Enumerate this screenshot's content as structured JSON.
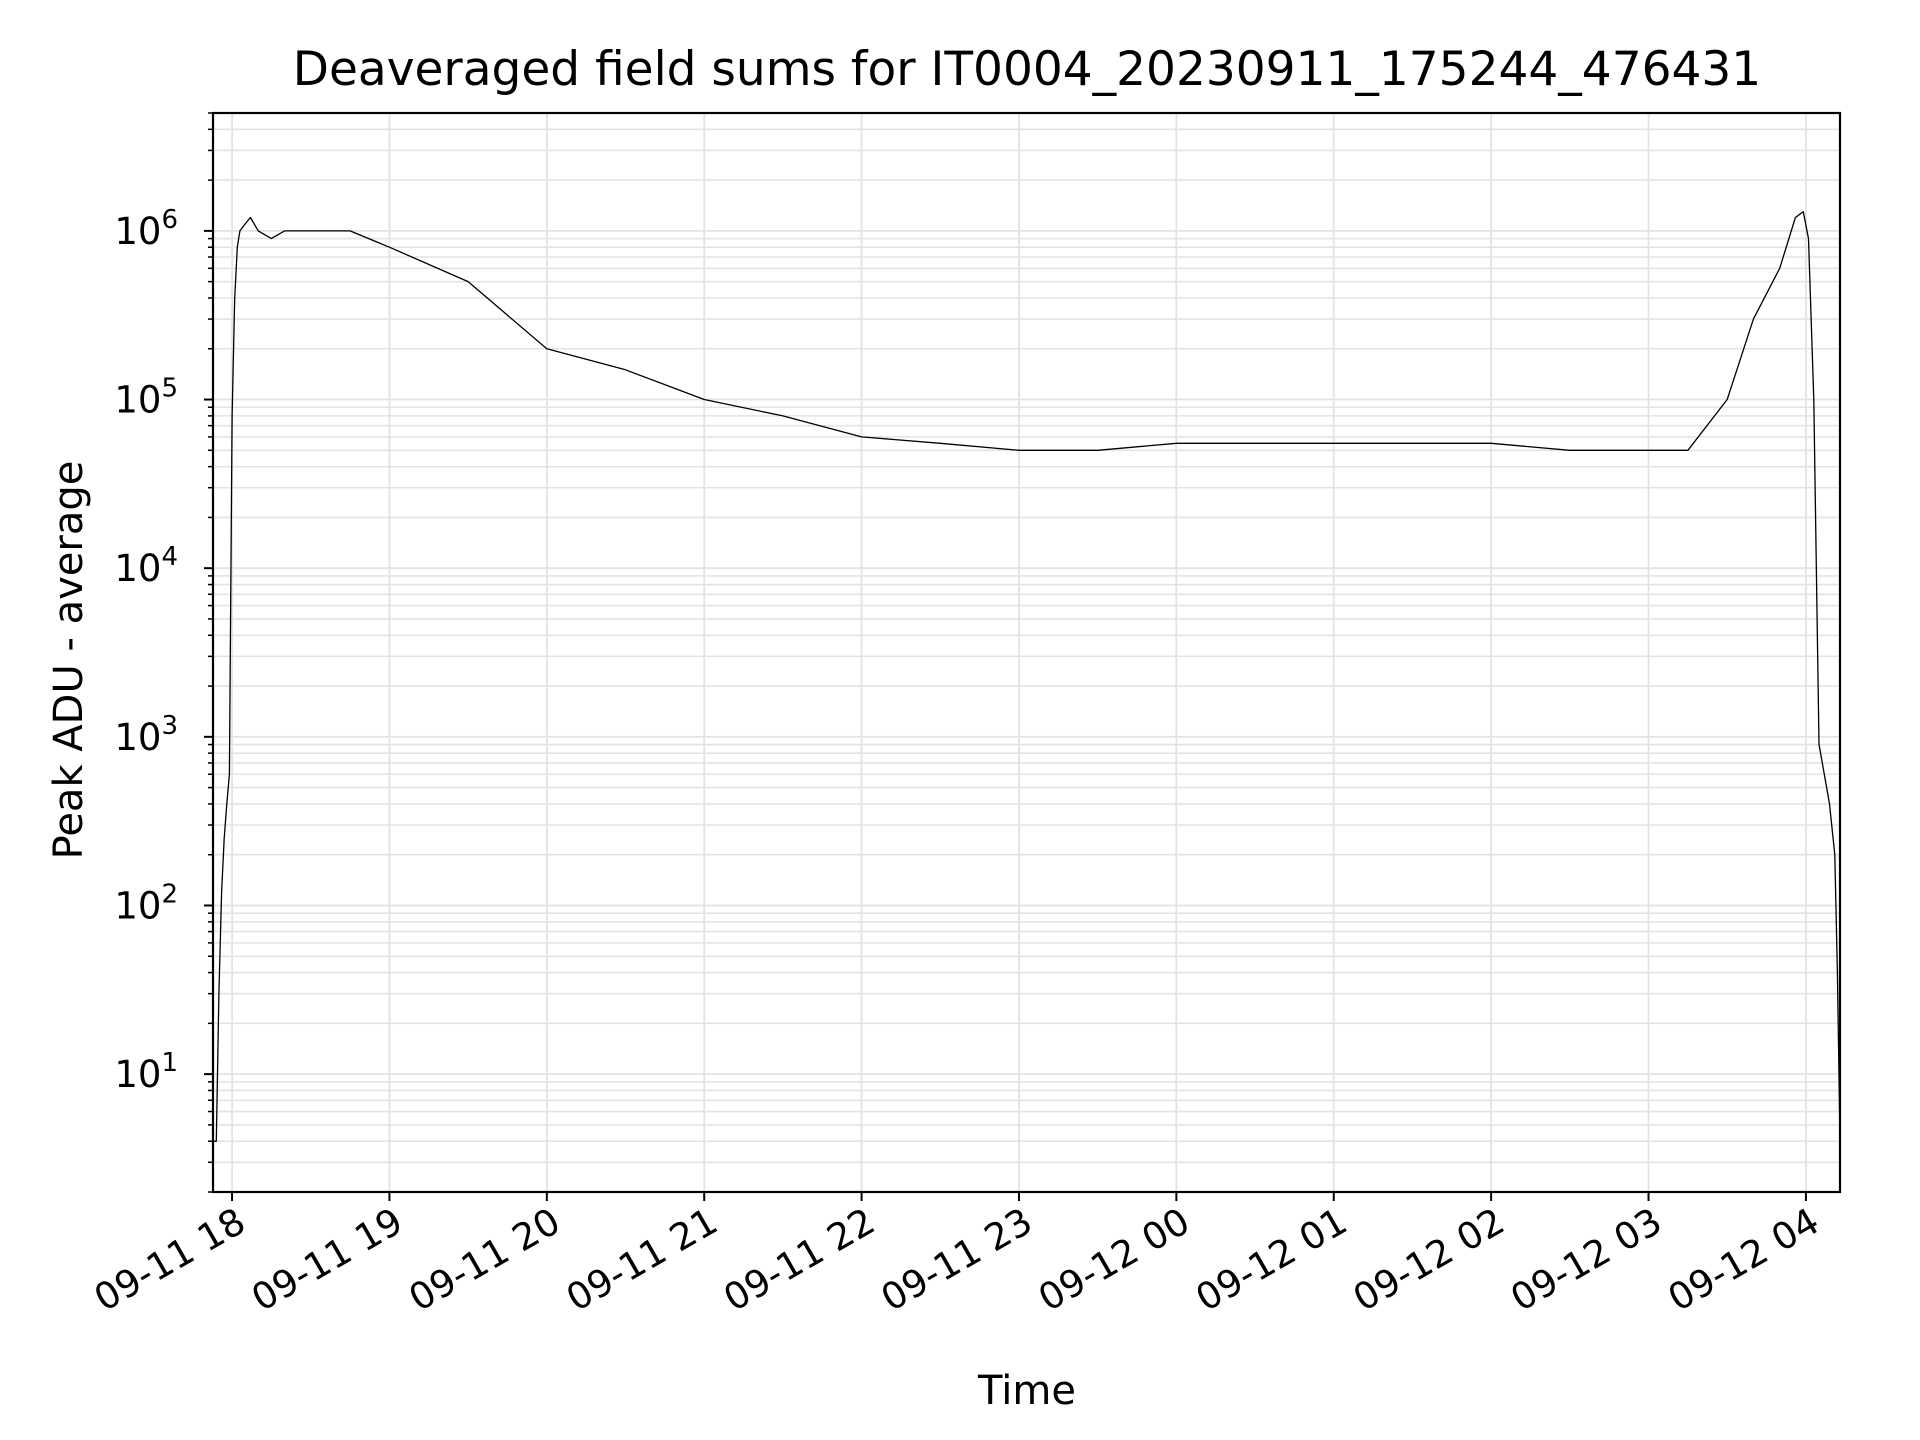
{
  "chart_data": {
    "type": "line",
    "title": "Deaveraged field sums for IT0004_20230911_175244_476431",
    "xlabel": "Time",
    "ylabel": "Peak ADU - average",
    "xscale": "time",
    "yscale": "log",
    "xlim": [
      "2023-09-11 17:52:44",
      "2023-09-12 04:13:00"
    ],
    "ylim": [
      2,
      5000000
    ],
    "grid": true,
    "legend": "none",
    "line_color": "#000000",
    "grid_color": "#e3e3e3",
    "x_ticks": [
      {
        "t": "2023-09-11 18:00",
        "label": "09-11 18"
      },
      {
        "t": "2023-09-11 19:00",
        "label": "09-11 19"
      },
      {
        "t": "2023-09-11 20:00",
        "label": "09-11 20"
      },
      {
        "t": "2023-09-11 21:00",
        "label": "09-11 21"
      },
      {
        "t": "2023-09-11 22:00",
        "label": "09-11 22"
      },
      {
        "t": "2023-09-11 23:00",
        "label": "09-11 23"
      },
      {
        "t": "2023-09-12 00:00",
        "label": "09-12 00"
      },
      {
        "t": "2023-09-12 01:00",
        "label": "09-12 01"
      },
      {
        "t": "2023-09-12 02:00",
        "label": "09-12 02"
      },
      {
        "t": "2023-09-12 03:00",
        "label": "09-12 03"
      },
      {
        "t": "2023-09-12 04:00",
        "label": "09-12 04"
      }
    ],
    "y_ticks": [
      {
        "value": 10,
        "base": "10",
        "exp": "1"
      },
      {
        "value": 100,
        "base": "10",
        "exp": "2"
      },
      {
        "value": 1000,
        "base": "10",
        "exp": "3"
      },
      {
        "value": 10000,
        "base": "10",
        "exp": "4"
      },
      {
        "value": 100000,
        "base": "10",
        "exp": "5"
      },
      {
        "value": 1000000,
        "base": "10",
        "exp": "6"
      }
    ],
    "series": [
      {
        "x": [
          "2023-09-11 17:52:44",
          "2023-09-11 17:54:00",
          "2023-09-11 17:55:00",
          "2023-09-11 17:56:00",
          "2023-09-11 17:57:00",
          "2023-09-11 17:58:00",
          "2023-09-11 17:59:00",
          "2023-09-11 18:00:00",
          "2023-09-11 18:01:00",
          "2023-09-11 18:02:00",
          "2023-09-11 18:03:00",
          "2023-09-11 18:05:00",
          "2023-09-11 18:07:00",
          "2023-09-11 18:10:00",
          "2023-09-11 18:15:00",
          "2023-09-11 18:20:00",
          "2023-09-11 18:30:00",
          "2023-09-11 18:45:00",
          "2023-09-11 19:00:00",
          "2023-09-11 19:30:00",
          "2023-09-11 20:00:00",
          "2023-09-11 20:30:00",
          "2023-09-11 21:00:00",
          "2023-09-11 21:30:00",
          "2023-09-11 22:00:00",
          "2023-09-11 22:30:00",
          "2023-09-11 23:00:00",
          "2023-09-11 23:30:00",
          "2023-09-12 00:00:00",
          "2023-09-12 00:30:00",
          "2023-09-12 01:00:00",
          "2023-09-12 01:30:00",
          "2023-09-12 02:00:00",
          "2023-09-12 02:30:00",
          "2023-09-12 03:00:00",
          "2023-09-12 03:15:00",
          "2023-09-12 03:30:00",
          "2023-09-12 03:40:00",
          "2023-09-12 03:50:00",
          "2023-09-12 03:56:00",
          "2023-09-12 03:59:00",
          "2023-09-12 04:01:00",
          "2023-09-12 04:03:00",
          "2023-09-12 04:05:00",
          "2023-09-12 04:07:00",
          "2023-09-12 04:09:00",
          "2023-09-12 04:11:00",
          "2023-09-12 04:12:00",
          "2023-09-12 04:13:00"
        ],
        "y": [
          4,
          4,
          30,
          120,
          250,
          400,
          600,
          80000,
          400000,
          800000,
          1000000,
          1100000,
          1200000,
          1000000,
          900000,
          1000000,
          1000000,
          1000000,
          800000,
          500000,
          200000,
          150000,
          100000,
          80000,
          60000,
          55000,
          50000,
          50000,
          55000,
          55000,
          55000,
          55000,
          55000,
          50000,
          50000,
          50000,
          100000,
          300000,
          600000,
          1200000,
          1300000,
          900000,
          100000,
          900,
          600,
          400,
          200,
          40,
          4
        ]
      }
    ]
  }
}
